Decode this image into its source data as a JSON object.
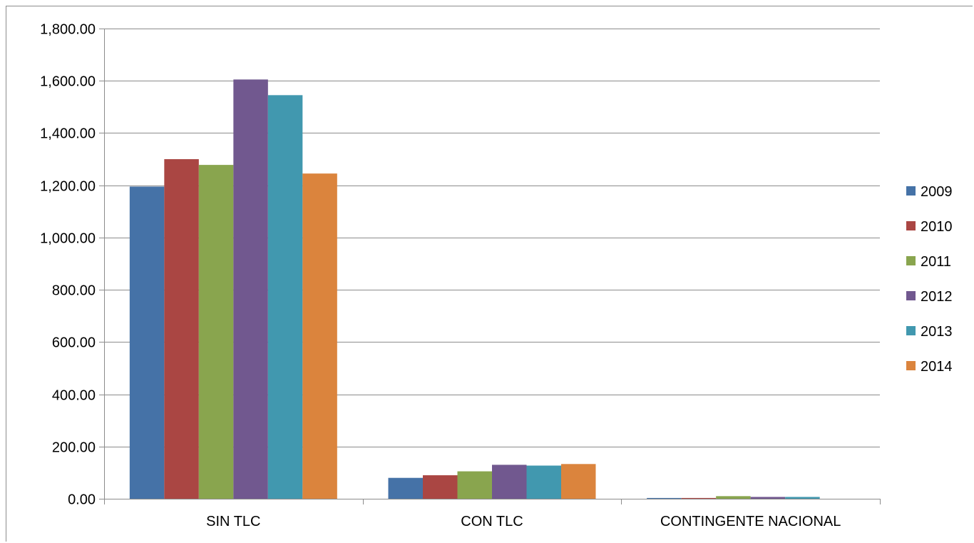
{
  "chart_data": {
    "type": "bar",
    "title": "",
    "xlabel": "",
    "ylabel": "",
    "categories": [
      "SIN TLC",
      "CON TLC",
      "CONTINGENTE NACIONAL"
    ],
    "y_tick_labels": [
      "0.00",
      "200.00",
      "400.00",
      "600.00",
      "800.00",
      "1,000.00",
      "1,200.00",
      "1,400.00",
      "1,600.00",
      "1,800.00"
    ],
    "ylim": [
      0,
      1800
    ],
    "y_tick_step": 200,
    "grid": true,
    "legend_position": "right",
    "series": [
      {
        "name": "2009",
        "color": "#4572a7",
        "values": [
          1195,
          80,
          3
        ]
      },
      {
        "name": "2010",
        "color": "#aa4643",
        "values": [
          1300,
          90,
          3
        ]
      },
      {
        "name": "2011",
        "color": "#89a54e",
        "values": [
          1278,
          105,
          10
        ]
      },
      {
        "name": "2012",
        "color": "#71588f",
        "values": [
          1605,
          130,
          7
        ]
      },
      {
        "name": "2013",
        "color": "#4198af",
        "values": [
          1545,
          127,
          7
        ]
      },
      {
        "name": "2014",
        "color": "#db843d",
        "values": [
          1245,
          133,
          0
        ]
      }
    ]
  }
}
